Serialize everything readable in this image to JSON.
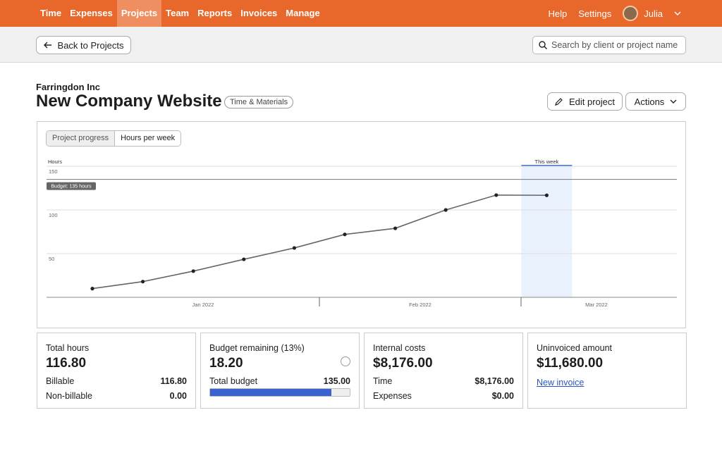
{
  "nav": {
    "items": [
      "Time",
      "Expenses",
      "Projects",
      "Team",
      "Reports",
      "Invoices",
      "Manage"
    ],
    "active": 2,
    "right_items": [
      "Help",
      "Settings"
    ],
    "user": "Julia"
  },
  "toolbar": {
    "back_button": "Back to Projects",
    "search_placeholder": "Search by client or project name"
  },
  "header": {
    "client": "Farringdon Inc",
    "title": "New Company Website",
    "badge": "Time & Materials",
    "edit_button": "Edit project",
    "actions_button": "Actions"
  },
  "chart_tabs": {
    "items": [
      "Project progress",
      "Hours per week"
    ],
    "active": 0
  },
  "chart_data": {
    "type": "line",
    "y_label": "Hours",
    "categories": [
      null,
      null,
      null,
      null,
      null,
      null,
      null,
      null,
      null,
      null
    ],
    "values": [
      10,
      18,
      30,
      43.5,
      56.5,
      72,
      79,
      100,
      117,
      116.8
    ],
    "color": "#666666",
    "ylim": [
      0,
      150
    ],
    "yticks": [
      50,
      100,
      150
    ],
    "grid": true,
    "month_labels": [
      "Jan 2022",
      "Feb 2022",
      "Mar 2022"
    ],
    "budget": {
      "value": 135,
      "label": "Budget: 135 hours"
    },
    "highlight": {
      "index": 9,
      "label": "This week"
    }
  },
  "cards": [
    {
      "title": "Total hours",
      "value": "116.80",
      "rows": [
        [
          "Billable",
          "116.80"
        ],
        [
          "Non-billable",
          "0.00"
        ]
      ]
    },
    {
      "title": "Budget remaining (13%)",
      "value": "18.20",
      "rows": [
        [
          "Total budget",
          "135.00"
        ]
      ],
      "progress": 87
    },
    {
      "title": "Internal costs",
      "value": "$8,176.00",
      "rows": [
        [
          "Time",
          "$8,176.00"
        ],
        [
          "Expenses",
          "$0.00"
        ]
      ]
    },
    {
      "title": "Uninvoiced amount",
      "value": "$11,680.00",
      "link": "New invoice"
    }
  ]
}
